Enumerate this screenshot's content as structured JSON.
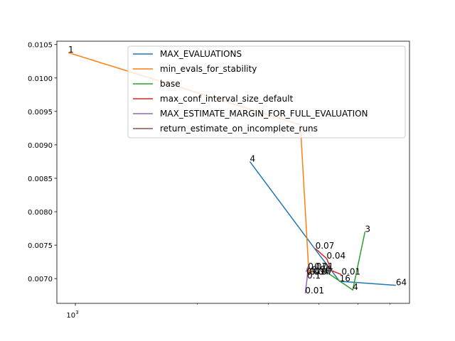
{
  "chart_data": {
    "type": "line",
    "xscale": "log",
    "xlim": [
      900,
      6700
    ],
    "ylim": [
      0.00663,
      0.01055
    ],
    "grid": false,
    "legend_position": "top-right",
    "xticks": [
      {
        "value": 1000,
        "base": "10",
        "exp": "3"
      }
    ],
    "xminor_ticks": [
      2000,
      3000,
      4000,
      5000,
      6000
    ],
    "yticks": [
      0.007,
      0.0075,
      0.008,
      0.0085,
      0.009,
      0.0095,
      0.01,
      0.0105
    ],
    "ytick_labels": [
      "0.0070",
      "0.0075",
      "0.0080",
      "0.0085",
      "0.0090",
      "0.0095",
      "0.0100",
      "0.0105"
    ],
    "series": [
      {
        "name": "MAX_EVALUATIONS",
        "color": "#1f77b4",
        "points": [
          {
            "x": 2700,
            "y": 0.00875,
            "label": "4"
          },
          {
            "x": 3960,
            "y": 0.0074,
            "label": ""
          },
          {
            "x": 4500,
            "y": 0.00696,
            "label": "16"
          },
          {
            "x": 6200,
            "y": 0.0069,
            "label": "64"
          }
        ]
      },
      {
        "name": "min_evals_for_stability",
        "color": "#ff7f0e",
        "points": [
          {
            "x": 960,
            "y": 0.01038,
            "label": "1"
          },
          {
            "x": 3600,
            "y": 0.0093,
            "label": ""
          },
          {
            "x": 3780,
            "y": 0.00706,
            "label": ""
          },
          {
            "x": 3830,
            "y": 0.00716,
            "label": ""
          }
        ]
      },
      {
        "name": "base",
        "color": "#2ca02c",
        "points": [
          {
            "x": 5200,
            "y": 0.0077,
            "label": "3"
          },
          {
            "x": 4850,
            "y": 0.00683,
            "label": "4"
          },
          {
            "x": 4150,
            "y": 0.00711,
            "label": ""
          }
        ]
      },
      {
        "name": "max_conf_interval_size_default",
        "color": "#d62728",
        "points": [
          {
            "x": 3920,
            "y": 0.00745,
            "label": "0.07"
          },
          {
            "x": 4180,
            "y": 0.0073,
            "label": "0.04"
          },
          {
            "x": 4300,
            "y": 0.00712,
            "label": ""
          },
          {
            "x": 4550,
            "y": 0.00706,
            "label": "0.01"
          }
        ]
      },
      {
        "name": "MAX_ESTIMATE_MARGIN_FOR_FULL_EVALUATION",
        "color": "#9467bd",
        "points": [
          {
            "x": 3720,
            "y": 0.0071,
            "label": ""
          },
          {
            "x": 3760,
            "y": 0.00718,
            "label": ""
          },
          {
            "x": 3740,
            "y": 0.007,
            "label": "0.1"
          },
          {
            "x": 3700,
            "y": 0.00678,
            "label": "0.01"
          }
        ]
      },
      {
        "name": "return_estimate_on_incomplete_runs",
        "color": "#8c564b",
        "points": [
          {
            "x": 3780,
            "y": 0.00712,
            "label": ""
          },
          {
            "x": 3900,
            "y": 0.00709,
            "label": ""
          }
        ]
      }
    ],
    "extra_labels": [
      {
        "x": 3760,
        "y": 0.00714,
        "text": "0.07"
      },
      {
        "x": 3840,
        "y": 0.00709,
        "text": "0.04"
      },
      {
        "x": 3900,
        "y": 0.00714,
        "text": "0.01"
      },
      {
        "x": 3730,
        "y": 0.00706,
        "text": "0.01"
      },
      {
        "x": 3800,
        "y": 0.00706,
        "text": "0.04"
      },
      {
        "x": 3880,
        "y": 0.00706,
        "text": "0.07"
      }
    ]
  }
}
